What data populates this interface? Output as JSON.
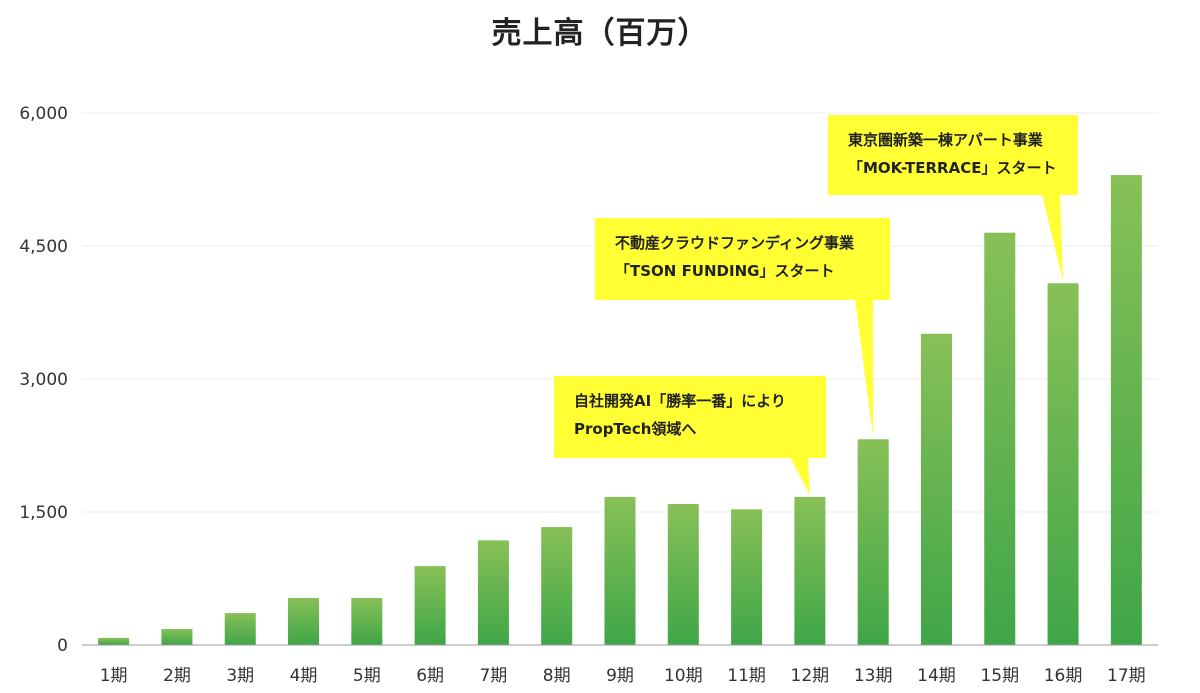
{
  "chart_data": {
    "type": "bar",
    "title": "売上高（百万）",
    "xlabel": "",
    "ylabel": "",
    "ylim": [
      0,
      6000
    ],
    "yticks": [
      0,
      1500,
      3000,
      4500,
      6000
    ],
    "ytick_labels": [
      "0",
      "1,500",
      "3,000",
      "4,500",
      "6,000"
    ],
    "grid": true,
    "categories": [
      "1期",
      "2期",
      "3期",
      "4期",
      "5期",
      "6期",
      "7期",
      "8期",
      "9期",
      "10期",
      "11期",
      "12期",
      "13期",
      "14期",
      "15期",
      "16期",
      "17期"
    ],
    "values": [
      80,
      180,
      360,
      530,
      530,
      890,
      1180,
      1330,
      1670,
      1590,
      1530,
      1670,
      2320,
      3510,
      4650,
      4080,
      5300
    ],
    "bar_color_top": "#88c057",
    "bar_color_bottom": "#3fa648",
    "annotations": [
      {
        "category": "12期",
        "lines": [
          "自社開発AI「勝率一番」により",
          "PropTech領域へ"
        ],
        "color": "#ffff33"
      },
      {
        "category": "13期",
        "lines": [
          "不動産クラウドファンディング事業",
          "「TSON FUNDING」スタート"
        ],
        "color": "#ffff33"
      },
      {
        "category": "16期",
        "lines": [
          "東京圏新築一棟アパート事業",
          "「MOK-TERRACE」スタート"
        ],
        "color": "#ffff33"
      }
    ]
  }
}
